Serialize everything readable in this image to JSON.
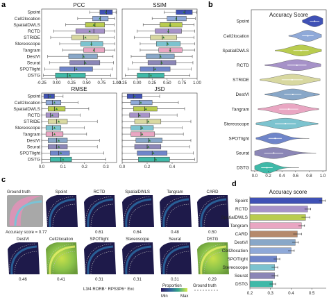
{
  "panels": {
    "a": "a",
    "b": "b",
    "c": "c",
    "d": "d"
  },
  "colors": {
    "Spoint": "#3f51b5",
    "Cell2location": "#8fa9d8",
    "SpatialDWLS": "#b9cc4f",
    "RCTD": "#a692c8",
    "STRIDE": "#d8d8a0",
    "Stereoscope": "#7cc3cf",
    "Tangram": "#e9a6c2",
    "DestVI": "#88a7c8",
    "Seurat": "#8b86b6",
    "SPOTlight": "#6f85c9",
    "DSTG": "#3fb9a8",
    "CARD": "#b58a6c"
  },
  "chart_data": [
    {
      "type": "box",
      "title": "PCC",
      "categories": [
        "Spoint",
        "Cell2location",
        "SpatialDWLS",
        "RCTD",
        "STRIDE",
        "Stereoscope",
        "Tangram",
        "DestVI",
        "Seurat",
        "SPOTlight",
        "DSTG"
      ],
      "xlim": [
        -0.25,
        1.0
      ],
      "xticks": [
        "-0.25",
        "0.00",
        "0.25",
        "0.50",
        "0.75",
        "1.00"
      ],
      "xtick_values": [
        -0.25,
        0,
        0.25,
        0.5,
        0.75,
        1.0
      ],
      "boxes": [
        {
          "min": 0.55,
          "q1": 0.72,
          "median": 0.83,
          "q3": 0.93,
          "max": 0.99,
          "mean": 0.82
        },
        {
          "min": 0.35,
          "q1": 0.6,
          "median": 0.73,
          "q3": 0.86,
          "max": 0.97,
          "mean": 0.72
        },
        {
          "min": 0.15,
          "q1": 0.48,
          "median": 0.64,
          "q3": 0.8,
          "max": 0.96,
          "mean": 0.62
        },
        {
          "min": -0.05,
          "q1": 0.32,
          "median": 0.62,
          "q3": 0.8,
          "max": 0.97,
          "mean": 0.55
        },
        {
          "min": -0.1,
          "q1": 0.25,
          "median": 0.45,
          "q3": 0.7,
          "max": 0.96,
          "mean": 0.48
        },
        {
          "min": 0.05,
          "q1": 0.4,
          "median": 0.58,
          "q3": 0.77,
          "max": 0.97,
          "mean": 0.58
        },
        {
          "min": 0.1,
          "q1": 0.45,
          "median": 0.63,
          "q3": 0.8,
          "max": 0.97,
          "mean": 0.62
        },
        {
          "min": -0.15,
          "q1": 0.2,
          "median": 0.44,
          "q3": 0.68,
          "max": 0.94,
          "mean": 0.45
        },
        {
          "min": -0.12,
          "q1": 0.22,
          "median": 0.46,
          "q3": 0.72,
          "max": 0.95,
          "mean": 0.48
        },
        {
          "min": -0.2,
          "q1": 0.05,
          "median": 0.3,
          "q3": 0.6,
          "max": 0.93,
          "mean": 0.33
        },
        {
          "min": -0.22,
          "q1": -0.02,
          "median": 0.18,
          "q3": 0.48,
          "max": 0.9,
          "mean": 0.22
        }
      ]
    },
    {
      "type": "box",
      "title": "SSIM",
      "categories": [
        "Spoint",
        "Cell2location",
        "SpatialDWLS",
        "RCTD",
        "STRIDE",
        "Stereoscope",
        "Tangram",
        "DestVI",
        "Seurat",
        "SPOTlight",
        "DSTG"
      ],
      "xlim": [
        -0.25,
        1.0
      ],
      "xticks": [
        "-0.25",
        "0.00",
        "0.25",
        "0.50",
        "0.75",
        "1.00"
      ],
      "xtick_values": [
        -0.25,
        0,
        0.25,
        0.5,
        0.75,
        1.0
      ],
      "boxes": [
        {
          "min": 0.45,
          "q1": 0.65,
          "median": 0.8,
          "q3": 0.92,
          "max": 0.99,
          "mean": 0.78
        },
        {
          "min": 0.25,
          "q1": 0.5,
          "median": 0.66,
          "q3": 0.82,
          "max": 0.97,
          "mean": 0.65
        },
        {
          "min": 0.1,
          "q1": 0.38,
          "median": 0.55,
          "q3": 0.75,
          "max": 0.95,
          "mean": 0.55
        },
        {
          "min": 0.0,
          "q1": 0.3,
          "median": 0.52,
          "q3": 0.74,
          "max": 0.96,
          "mean": 0.52
        },
        {
          "min": -0.05,
          "q1": 0.22,
          "median": 0.42,
          "q3": 0.66,
          "max": 0.95,
          "mean": 0.44
        },
        {
          "min": 0.05,
          "q1": 0.32,
          "median": 0.5,
          "q3": 0.72,
          "max": 0.96,
          "mean": 0.51
        },
        {
          "min": 0.05,
          "q1": 0.36,
          "median": 0.55,
          "q3": 0.75,
          "max": 0.96,
          "mean": 0.55
        },
        {
          "min": -0.1,
          "q1": 0.15,
          "median": 0.38,
          "q3": 0.62,
          "max": 0.92,
          "mean": 0.39
        },
        {
          "min": -0.08,
          "q1": 0.18,
          "median": 0.4,
          "q3": 0.65,
          "max": 0.93,
          "mean": 0.41
        },
        {
          "min": -0.15,
          "q1": 0.05,
          "median": 0.28,
          "q3": 0.55,
          "max": 0.9,
          "mean": 0.3
        },
        {
          "min": -0.2,
          "q1": 0.0,
          "median": 0.2,
          "q3": 0.45,
          "max": 0.88,
          "mean": 0.23
        }
      ]
    },
    {
      "type": "box",
      "title": "RMSE",
      "categories": [
        "Spoint",
        "Cell2location",
        "SpatialDWLS",
        "RCTD",
        "STRIDE",
        "Stereoscope",
        "Tangram",
        "DestVI",
        "Seurat",
        "SPOTlight",
        "DSTG"
      ],
      "xlim": [
        0.0,
        0.35
      ],
      "xticks": [
        "0.0",
        "0.1",
        "0.2",
        "0.3"
      ],
      "xtick_values": [
        0,
        0.1,
        0.2,
        0.3
      ],
      "boxes": [
        {
          "min": 0.0,
          "q1": 0.01,
          "median": 0.03,
          "q3": 0.06,
          "max": 0.1,
          "mean": 0.04
        },
        {
          "min": 0.0,
          "q1": 0.02,
          "median": 0.05,
          "q3": 0.09,
          "max": 0.17,
          "mean": 0.06
        },
        {
          "min": 0.0,
          "q1": 0.03,
          "median": 0.06,
          "q3": 0.11,
          "max": 0.22,
          "mean": 0.07
        },
        {
          "min": 0.0,
          "q1": 0.02,
          "median": 0.04,
          "q3": 0.08,
          "max": 0.18,
          "mean": 0.05
        },
        {
          "min": 0.0,
          "q1": 0.03,
          "median": 0.07,
          "q3": 0.12,
          "max": 0.26,
          "mean": 0.08
        },
        {
          "min": 0.0,
          "q1": 0.02,
          "median": 0.05,
          "q3": 0.09,
          "max": 0.2,
          "mean": 0.06
        },
        {
          "min": 0.0,
          "q1": 0.02,
          "median": 0.05,
          "q3": 0.1,
          "max": 0.21,
          "mean": 0.06
        },
        {
          "min": 0.0,
          "q1": 0.03,
          "median": 0.07,
          "q3": 0.12,
          "max": 0.27,
          "mean": 0.08
        },
        {
          "min": 0.0,
          "q1": 0.03,
          "median": 0.07,
          "q3": 0.12,
          "max": 0.26,
          "mean": 0.08
        },
        {
          "min": 0.0,
          "q1": 0.04,
          "median": 0.08,
          "q3": 0.13,
          "max": 0.29,
          "mean": 0.09
        },
        {
          "min": 0.0,
          "q1": 0.04,
          "median": 0.09,
          "q3": 0.14,
          "max": 0.3,
          "mean": 0.1
        }
      ]
    },
    {
      "type": "box",
      "title": "JSD",
      "categories": [
        "Spoint",
        "Cell2location",
        "SpatialDWLS",
        "RCTD",
        "STRIDE",
        "Stereoscope",
        "Tangram",
        "DestVI",
        "Seurat",
        "SPOTlight",
        "DSTG"
      ],
      "xlim": [
        0.0,
        0.6
      ],
      "xticks": [
        "0.0",
        "0.2",
        "0.4"
      ],
      "xtick_values": [
        0,
        0.2,
        0.4
      ],
      "boxes": [
        {
          "min": 0.0,
          "q1": 0.04,
          "median": 0.09,
          "q3": 0.16,
          "max": 0.3,
          "mean": 0.1
        },
        {
          "min": 0.0,
          "q1": 0.07,
          "median": 0.14,
          "q3": 0.24,
          "max": 0.45,
          "mean": 0.15
        },
        {
          "min": 0.0,
          "q1": 0.09,
          "median": 0.18,
          "q3": 0.28,
          "max": 0.5,
          "mean": 0.19
        },
        {
          "min": 0.0,
          "q1": 0.06,
          "median": 0.13,
          "q3": 0.22,
          "max": 0.44,
          "mean": 0.14
        },
        {
          "min": 0.0,
          "q1": 0.1,
          "median": 0.2,
          "q3": 0.31,
          "max": 0.55,
          "mean": 0.21
        },
        {
          "min": 0.0,
          "q1": 0.07,
          "median": 0.15,
          "q3": 0.25,
          "max": 0.48,
          "mean": 0.16
        },
        {
          "min": 0.0,
          "q1": 0.07,
          "median": 0.15,
          "q3": 0.26,
          "max": 0.49,
          "mean": 0.16
        },
        {
          "min": 0.0,
          "q1": 0.11,
          "median": 0.21,
          "q3": 0.32,
          "max": 0.55,
          "mean": 0.22
        },
        {
          "min": 0.0,
          "q1": 0.1,
          "median": 0.2,
          "q3": 0.31,
          "max": 0.54,
          "mean": 0.21
        },
        {
          "min": 0.0,
          "q1": 0.12,
          "median": 0.24,
          "q3": 0.36,
          "max": 0.57,
          "mean": 0.25
        },
        {
          "min": 0.0,
          "q1": 0.13,
          "median": 0.26,
          "q3": 0.38,
          "max": 0.58,
          "mean": 0.27
        }
      ]
    },
    {
      "type": "violin",
      "title": "Accuracy Score",
      "categories": [
        "Spoint",
        "Cell2location",
        "SpatialDWLS",
        "RCTD",
        "STRIDE",
        "DestVI",
        "Tangram",
        "Stereoscope",
        "SPOTlight",
        "Seurat",
        "DSTG"
      ],
      "xlim": [
        -0.05,
        1.05
      ],
      "xticks": [
        "0.0",
        "0.2",
        "0.4",
        "0.6",
        "0.8",
        "1.0"
      ],
      "xtick_values": [
        0,
        0.2,
        0.4,
        0.6,
        0.8,
        1.0
      ],
      "violins": [
        {
          "center": 0.88,
          "spread": 0.1,
          "min": 0.7,
          "max": 1.0
        },
        {
          "center": 0.78,
          "spread": 0.12,
          "min": 0.5,
          "max": 0.98
        },
        {
          "center": 0.68,
          "spread": 0.16,
          "min": 0.3,
          "max": 0.98
        },
        {
          "center": 0.62,
          "spread": 0.2,
          "min": 0.15,
          "max": 0.97
        },
        {
          "center": 0.55,
          "spread": 0.22,
          "min": 0.08,
          "max": 0.96
        },
        {
          "center": 0.56,
          "spread": 0.18,
          "min": 0.15,
          "max": 0.95
        },
        {
          "center": 0.5,
          "spread": 0.2,
          "min": 0.05,
          "max": 0.94
        },
        {
          "center": 0.45,
          "spread": 0.22,
          "min": 0.02,
          "max": 0.93
        },
        {
          "center": 0.3,
          "spread": 0.14,
          "min": 0.02,
          "max": 0.8
        },
        {
          "center": 0.28,
          "spread": 0.2,
          "min": 0.0,
          "max": 0.9
        },
        {
          "center": 0.18,
          "spread": 0.12,
          "min": 0.0,
          "max": 0.65
        }
      ]
    },
    {
      "type": "bar",
      "title": "Accuracy score",
      "categories": [
        "Spoint",
        "RCTD",
        "SpatialDWLS",
        "Tangram",
        "CARD",
        "DestVI",
        "Cell2location",
        "SPOTlight",
        "Stereoscope",
        "Seurat",
        "DSTG"
      ],
      "values": [
        0.55,
        0.48,
        0.47,
        0.45,
        0.43,
        0.42,
        0.4,
        0.33,
        0.32,
        0.32,
        0.31
      ],
      "errors": [
        0.015,
        0.015,
        0.02,
        0.015,
        0.02,
        0.015,
        0.015,
        0.015,
        0.015,
        0.015,
        0.015
      ],
      "xlim": [
        0.2,
        0.57
      ],
      "xticks": [
        "0.2",
        "0.3",
        "0.4",
        "0.5"
      ],
      "xtick_values": [
        0.2,
        0.3,
        0.4,
        0.5
      ]
    }
  ],
  "maps": {
    "header": "Ground truth",
    "accuracy_prefix": "Accuracy score =",
    "row1": [
      {
        "name": "Spoint",
        "score": "0.77"
      },
      {
        "name": "RCTD",
        "score": "0.61"
      },
      {
        "name": "SpatialDWLS",
        "score": "0.64"
      },
      {
        "name": "Tangram",
        "score": "0.48"
      },
      {
        "name": "CARD",
        "score": "0.50"
      }
    ],
    "row2": [
      {
        "name": "DestVI",
        "score": "0.46"
      },
      {
        "name": "Cell2location",
        "score": "0.41"
      },
      {
        "name": "SPOTlight",
        "score": "0.31"
      },
      {
        "name": "Stereoscope",
        "score": "0.31"
      },
      {
        "name": "Seurat",
        "score": "0.31"
      },
      {
        "name": "DSTG",
        "score": "0.29"
      }
    ],
    "celltype": "L3/4 RORB⁺ RPS3P6⁺ Exc",
    "legend_proportion": "Proportion",
    "legend_min": "Min",
    "legend_max": "Max",
    "legend_ground_truth": "Ground truth"
  }
}
